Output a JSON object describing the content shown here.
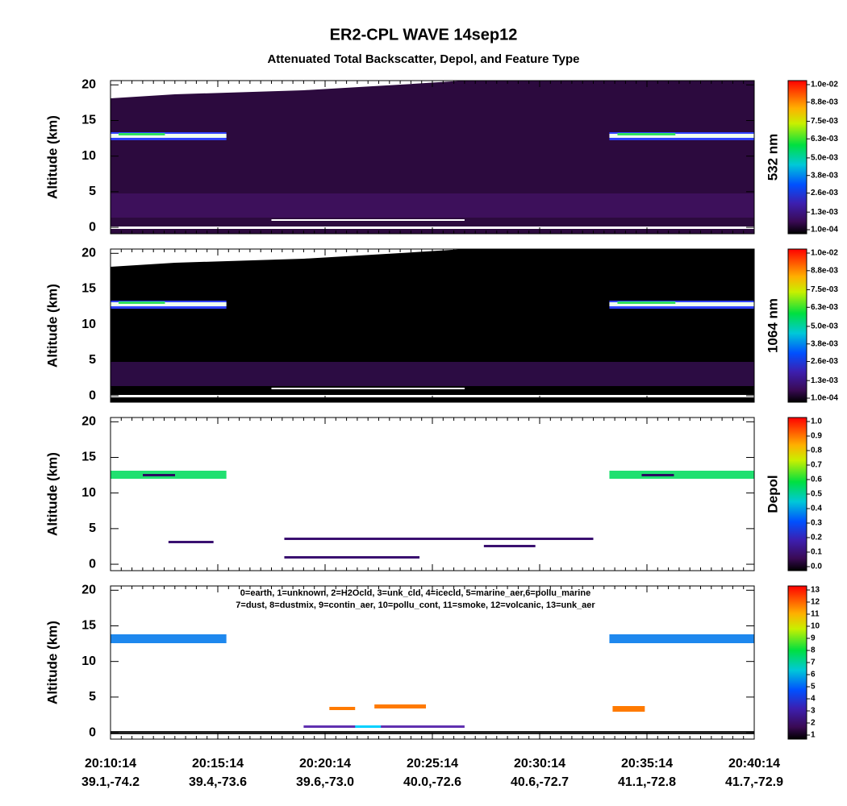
{
  "chart_data": [
    {
      "type": "heatmap",
      "title": "ER2-CPL WAVE 14sep12",
      "subtitle": "Attenuated Total Backscatter, Depol, and Feature Type",
      "y_label": "Altitude (km)",
      "ylim": [
        -0.9,
        20.6
      ],
      "yticks": [
        0,
        5,
        10,
        15,
        20
      ],
      "curtain_color": "#2c0a3e",
      "colorbar": {
        "label": "532 nm",
        "clim": [
          0.0001,
          0.01
        ],
        "ticks": [
          {
            "value": 0.0001,
            "label": "1.0e-04"
          },
          {
            "value": 0.0013,
            "label": "1.3e-03"
          },
          {
            "value": 0.0026,
            "label": "2.6e-03"
          },
          {
            "value": 0.0038,
            "label": "3.8e-03"
          },
          {
            "value": 0.005,
            "label": "5.0e-03"
          },
          {
            "value": 0.0063,
            "label": "6.3e-03"
          },
          {
            "value": 0.0075,
            "label": "7.5e-03"
          },
          {
            "value": 0.0088,
            "label": "8.8e-03"
          },
          {
            "value": 0.01,
            "label": "1.0e-02"
          }
        ]
      }
    },
    {
      "type": "heatmap",
      "y_label": "Altitude (km)",
      "ylim": [
        -0.9,
        20.6
      ],
      "yticks": [
        0,
        5,
        10,
        15,
        20
      ],
      "curtain_color": "#000000",
      "colorbar": {
        "label": "1064 nm",
        "clim": [
          0.0001,
          0.01
        ],
        "ticks": [
          {
            "value": 0.0001,
            "label": "1.0e-04"
          },
          {
            "value": 0.0013,
            "label": "1.3e-03"
          },
          {
            "value": 0.0026,
            "label": "2.6e-03"
          },
          {
            "value": 0.0038,
            "label": "3.8e-03"
          },
          {
            "value": 0.005,
            "label": "5.0e-03"
          },
          {
            "value": 0.0063,
            "label": "6.3e-03"
          },
          {
            "value": 0.0075,
            "label": "7.5e-03"
          },
          {
            "value": 0.0088,
            "label": "8.8e-03"
          },
          {
            "value": 0.01,
            "label": "1.0e-02"
          }
        ]
      }
    },
    {
      "type": "heatmap",
      "y_label": "Altitude (km)",
      "ylim": [
        -0.9,
        20.6
      ],
      "yticks": [
        0,
        5,
        10,
        15,
        20
      ],
      "colorbar": {
        "label": "Depol",
        "clim": [
          0,
          1
        ],
        "ticks": [
          {
            "value": 0,
            "label": "0.0"
          },
          0.1,
          0.2,
          0.3,
          0.4,
          0.5,
          0.6,
          0.7,
          0.8,
          0.9,
          {
            "value": 1,
            "label": "1.0"
          }
        ]
      }
    },
    {
      "type": "heatmap",
      "y_label": "Altitude (km)",
      "ylim": [
        -0.9,
        20.6
      ],
      "yticks": [
        0,
        5,
        10,
        15,
        20
      ],
      "annotations": [
        "0=earth, 1=unknown, 2=H2Ocld, 3=unk_cld, 4=icecld, 5=marine_aer,6=pollu_marine",
        "7=dust, 8=dustmix, 9=contin_aer, 10=pollu_cont, 11=smoke, 12=volcanic, 13=unk_aer"
      ],
      "colorbar": {
        "clim": [
          1,
          13
        ],
        "ticks": [
          1,
          2,
          3,
          4,
          5,
          6,
          7,
          8,
          9,
          10,
          11,
          12,
          13
        ]
      },
      "categories": [
        "20:10:14",
        "20:15:14",
        "20:20:14",
        "20:25:14",
        "20:30:14",
        "20:35:14",
        "20:40:14"
      ],
      "locations": [
        "39.1,-74.2",
        "39.4,-73.6",
        "39.6,-73.0",
        "40.0,-72.6",
        "40.6,-72.7",
        "41.1,-72.8",
        "41.7,-72.9"
      ]
    }
  ]
}
